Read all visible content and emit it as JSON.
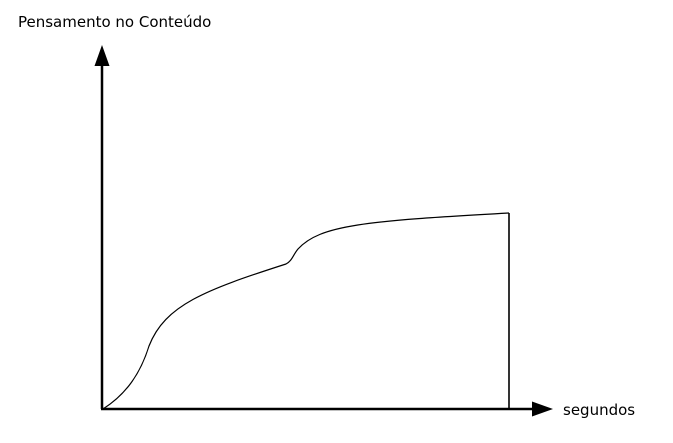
{
  "diagram": {
    "y_axis_label": "Pensamento no Conteúdo",
    "x_axis_label": "segundos",
    "line_color": "#000000",
    "background_color": "#ffffff"
  }
}
